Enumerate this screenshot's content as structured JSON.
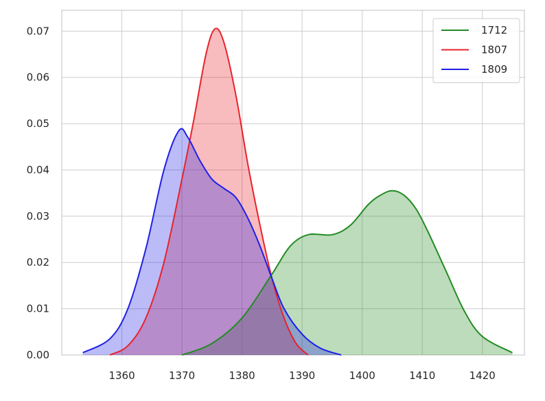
{
  "chart_data": {
    "type": "area",
    "title": "",
    "xlabel": "",
    "ylabel": "",
    "xlim": [
      1350,
      1427
    ],
    "ylim": [
      0,
      0.0745
    ],
    "x_ticks": [
      1360,
      1370,
      1380,
      1390,
      1400,
      1410,
      1420
    ],
    "x_tick_labels": [
      "1360",
      "1370",
      "1380",
      "1390",
      "1400",
      "1410",
      "1420"
    ],
    "y_ticks": [
      0,
      0.01,
      0.02,
      0.03,
      0.04,
      0.05,
      0.06,
      0.07
    ],
    "y_tick_labels": [
      "0.00",
      "0.01",
      "0.02",
      "0.03",
      "0.04",
      "0.05",
      "0.06",
      "0.07"
    ],
    "grid": true,
    "legend": "top-right",
    "series": [
      {
        "name": "1712",
        "color": "#228b22",
        "x": [
          1370,
          1375,
          1380,
          1385,
          1388,
          1391,
          1395,
          1398,
          1401,
          1403,
          1405,
          1407,
          1409,
          1411,
          1414,
          1417,
          1420,
          1425
        ],
        "y": [
          0.0,
          0.0025,
          0.008,
          0.0175,
          0.0235,
          0.026,
          0.026,
          0.028,
          0.0325,
          0.0345,
          0.0355,
          0.0345,
          0.0315,
          0.0265,
          0.018,
          0.0095,
          0.004,
          0.0005
        ]
      },
      {
        "name": "1807",
        "color": "#e8222b",
        "x": [
          1358,
          1361,
          1364,
          1367,
          1370,
          1372,
          1374,
          1375.5,
          1377,
          1379,
          1381,
          1383,
          1385,
          1387,
          1389,
          1391
        ],
        "y": [
          0.0,
          0.002,
          0.008,
          0.02,
          0.038,
          0.051,
          0.065,
          0.0705,
          0.0675,
          0.056,
          0.041,
          0.028,
          0.0165,
          0.008,
          0.0025,
          0.0
        ]
      },
      {
        "name": "1809",
        "color": "#1f1fe6",
        "x": [
          1353.5,
          1358,
          1361,
          1364,
          1367,
          1369.5,
          1371,
          1373,
          1375,
          1377,
          1379,
          1381,
          1383,
          1385,
          1387,
          1390,
          1393,
          1396.5
        ],
        "y": [
          0.0005,
          0.0035,
          0.01,
          0.023,
          0.04,
          0.0485,
          0.047,
          0.042,
          0.038,
          0.036,
          0.034,
          0.0295,
          0.0235,
          0.0165,
          0.01,
          0.0045,
          0.0015,
          0.0
        ]
      }
    ]
  }
}
